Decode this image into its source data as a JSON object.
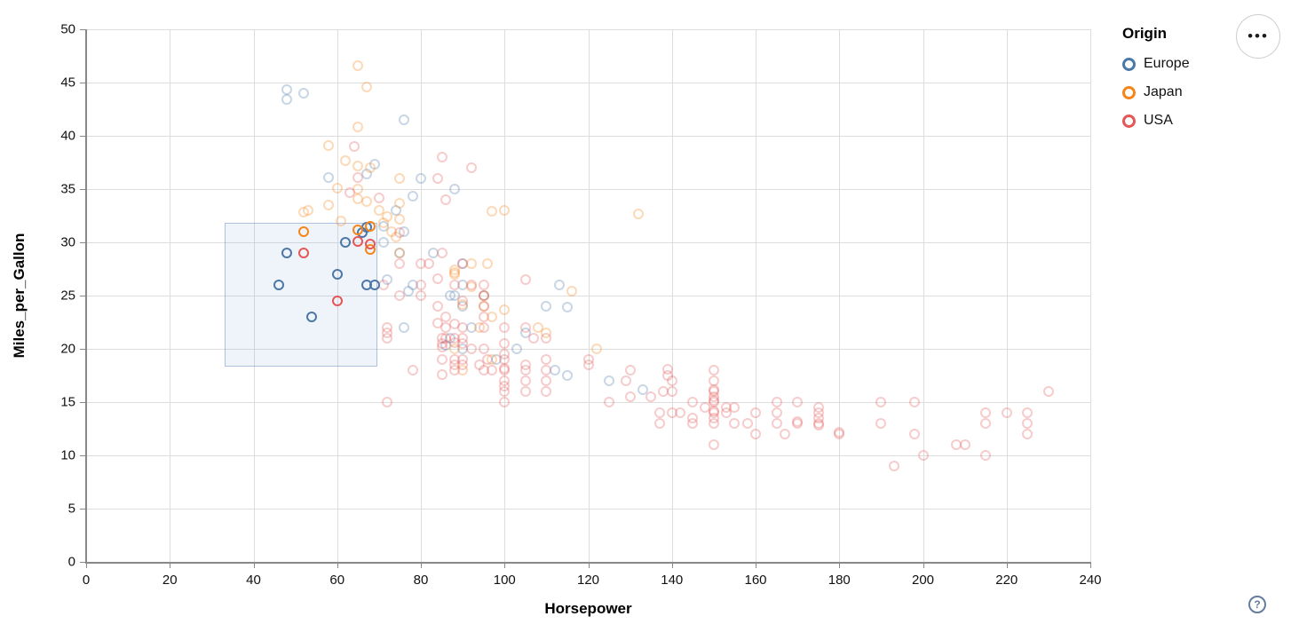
{
  "controls": {
    "menu_label": "•••",
    "help_label": "?"
  },
  "legend": {
    "title": "Origin",
    "entries": [
      {
        "label": "Europe",
        "color": "#4c78a8"
      },
      {
        "label": "Japan",
        "color": "#f58518"
      },
      {
        "label": "USA",
        "color": "#e45756"
      }
    ]
  },
  "colors": {
    "europe": "#4c78a8",
    "japan": "#f58518",
    "usa": "#e45756",
    "gridline": "#dddddd",
    "axis": "#888888",
    "brush_fill": "rgba(125,160,212,0.12)",
    "brush_border": "rgba(120,150,200,0.55)"
  },
  "chart_data": {
    "type": "scatter",
    "title": "",
    "xlabel": "Horsepower",
    "ylabel": "Miles_per_Gallon",
    "xlim": [
      0,
      240
    ],
    "ylim": [
      0,
      50
    ],
    "xticks": [
      0,
      20,
      40,
      60,
      80,
      100,
      120,
      140,
      160,
      180,
      200,
      220,
      240
    ],
    "yticks": [
      0,
      5,
      10,
      15,
      20,
      25,
      30,
      35,
      40,
      45,
      50
    ],
    "grid": true,
    "legend_position": "top-right",
    "legend_title": "Origin",
    "marker": "open-circle",
    "unselected_opacity": 0.3,
    "brush": {
      "x": [
        33,
        69.5
      ],
      "y": [
        18.3,
        31.8
      ]
    },
    "series": [
      {
        "name": "Europe",
        "color": "#4c78a8",
        "selected": [
          [
            46,
            26
          ],
          [
            48,
            29
          ],
          [
            54,
            23
          ],
          [
            60,
            27
          ],
          [
            62,
            30
          ],
          [
            66,
            30.9
          ],
          [
            67,
            31.4
          ],
          [
            67,
            26
          ],
          [
            69,
            26
          ]
        ],
        "points": [
          [
            48,
            43.4
          ],
          [
            48,
            44.3
          ],
          [
            52,
            44
          ],
          [
            76,
            41.5
          ],
          [
            88,
            35
          ],
          [
            67,
            36.4
          ],
          [
            58,
            36.1
          ],
          [
            69,
            37.3
          ],
          [
            78,
            34.3
          ],
          [
            74,
            33
          ],
          [
            71,
            31.5
          ],
          [
            71,
            30
          ],
          [
            76,
            31
          ],
          [
            83,
            29
          ],
          [
            75,
            29
          ],
          [
            90,
            28
          ],
          [
            78,
            26
          ],
          [
            90,
            26
          ],
          [
            87,
            25
          ],
          [
            90,
            24
          ],
          [
            110,
            24
          ],
          [
            95,
            25
          ],
          [
            113,
            26
          ],
          [
            115,
            23.9
          ],
          [
            105,
            21.5
          ],
          [
            77,
            25.4
          ],
          [
            125,
            17
          ],
          [
            133,
            16.2
          ],
          [
            112,
            18
          ],
          [
            98,
            19
          ],
          [
            90,
            20
          ],
          [
            87,
            21
          ],
          [
            76,
            22
          ],
          [
            86,
            20.3
          ],
          [
            92,
            22
          ],
          [
            103,
            20
          ],
          [
            115,
            17.5
          ],
          [
            80,
            36
          ],
          [
            88,
            25
          ],
          [
            72,
            26.5
          ]
        ]
      },
      {
        "name": "Japan",
        "color": "#f58518",
        "selected": [
          [
            52,
            31
          ],
          [
            65,
            31.2
          ],
          [
            68,
            31.5
          ],
          [
            68,
            29.3
          ]
        ],
        "points": [
          [
            95,
            24
          ],
          [
            88,
            27
          ],
          [
            88,
            27.4
          ],
          [
            65,
            35
          ],
          [
            74,
            30.5
          ],
          [
            95,
            25
          ],
          [
            92,
            28
          ],
          [
            97,
            23
          ],
          [
            88,
            20
          ],
          [
            94,
            22
          ],
          [
            90,
            18
          ],
          [
            122,
            20
          ],
          [
            73,
            31
          ],
          [
            88,
            27.2
          ],
          [
            53,
            33
          ],
          [
            75,
            29
          ],
          [
            61,
            32
          ],
          [
            97,
            19
          ],
          [
            110,
            21.5
          ],
          [
            67,
            33.8
          ],
          [
            65,
            34.1
          ],
          [
            52,
            32.8
          ],
          [
            60,
            35.1
          ],
          [
            65,
            40.8
          ],
          [
            58,
            39.1
          ],
          [
            62,
            37.7
          ],
          [
            65,
            37.2
          ],
          [
            75,
            33.7
          ],
          [
            96,
            28
          ],
          [
            97,
            32.9
          ],
          [
            100,
            33
          ],
          [
            116,
            25.4
          ],
          [
            132,
            32.7
          ],
          [
            100,
            23.7
          ],
          [
            72,
            32.4
          ],
          [
            75,
            36
          ],
          [
            75,
            32.2
          ],
          [
            70,
            33
          ],
          [
            67,
            44.6
          ],
          [
            65,
            46.6
          ],
          [
            58,
            33.5
          ],
          [
            71,
            31.8
          ],
          [
            68,
            37
          ],
          [
            90,
            24.2
          ],
          [
            108,
            22
          ],
          [
            92,
            25.8
          ]
        ]
      },
      {
        "name": "USA",
        "color": "#e45756",
        "selected": [
          [
            52,
            29
          ],
          [
            60,
            24.5
          ],
          [
            65,
            30.1
          ],
          [
            68,
            29.8
          ]
        ],
        "points": [
          [
            130,
            18
          ],
          [
            165,
            15
          ],
          [
            150,
            18
          ],
          [
            150,
            16
          ],
          [
            140,
            17
          ],
          [
            198,
            15
          ],
          [
            220,
            14
          ],
          [
            215,
            14
          ],
          [
            225,
            14
          ],
          [
            190,
            15
          ],
          [
            170,
            15
          ],
          [
            160,
            14
          ],
          [
            150,
            15
          ],
          [
            225,
            13
          ],
          [
            95,
            24
          ],
          [
            95,
            22
          ],
          [
            97,
            18
          ],
          [
            85,
            21
          ],
          [
            90,
            21
          ],
          [
            215,
            10
          ],
          [
            200,
            10
          ],
          [
            210,
            11
          ],
          [
            193,
            9
          ],
          [
            90,
            28
          ],
          [
            95,
            25
          ],
          [
            100,
            19
          ],
          [
            105,
            16
          ],
          [
            100,
            17
          ],
          [
            88,
            19
          ],
          [
            100,
            18
          ],
          [
            165,
            14
          ],
          [
            175,
            14
          ],
          [
            153,
            14
          ],
          [
            150,
            14
          ],
          [
            180,
            12
          ],
          [
            170,
            13
          ],
          [
            175,
            13
          ],
          [
            110,
            18
          ],
          [
            72,
            22
          ],
          [
            100,
            19.5
          ],
          [
            88,
            18
          ],
          [
            86,
            23
          ],
          [
            71,
            26
          ],
          [
            80,
            25
          ],
          [
            90,
            20.5
          ],
          [
            86,
            21
          ],
          [
            165,
            13
          ],
          [
            175,
            14.5
          ],
          [
            150,
            15.5
          ],
          [
            153,
            14.5
          ],
          [
            150,
            17
          ],
          [
            208,
            11
          ],
          [
            155,
            13
          ],
          [
            160,
            12
          ],
          [
            190,
            13
          ],
          [
            145,
            13
          ],
          [
            137,
            13
          ],
          [
            150,
            14.2
          ],
          [
            86,
            22
          ],
          [
            80,
            28
          ],
          [
            175,
            13.5
          ],
          [
            145,
            13.5
          ],
          [
            137,
            14
          ],
          [
            198,
            12
          ],
          [
            150,
            13
          ],
          [
            158,
            13
          ],
          [
            215,
            13
          ],
          [
            225,
            12
          ],
          [
            175,
            12.8
          ],
          [
            105,
            18
          ],
          [
            100,
            16
          ],
          [
            88,
            18.5
          ],
          [
            95,
            23
          ],
          [
            150,
            11
          ],
          [
            167,
            12
          ],
          [
            170,
            13.2
          ],
          [
            180,
            12.2
          ],
          [
            100,
            18.2
          ],
          [
            72,
            21
          ],
          [
            85,
            19
          ],
          [
            107,
            21
          ],
          [
            145,
            15
          ],
          [
            230,
            16
          ],
          [
            150,
            15.2
          ],
          [
            110,
            16
          ],
          [
            105,
            18.5
          ],
          [
            140,
            16
          ],
          [
            150,
            13.5
          ],
          [
            140,
            14
          ],
          [
            148,
            14.5
          ],
          [
            75,
            28
          ],
          [
            95,
            20
          ],
          [
            90,
            19
          ],
          [
            100,
            15
          ],
          [
            80,
            26
          ],
          [
            75,
            25
          ],
          [
            100,
            16.5
          ],
          [
            110,
            17
          ],
          [
            105,
            17
          ],
          [
            85,
            20.5
          ],
          [
            88,
            21
          ],
          [
            90,
            18.5
          ],
          [
            95,
            18
          ],
          [
            100,
            22
          ],
          [
            105,
            26.5
          ],
          [
            85,
            20.2
          ],
          [
            88,
            20.6
          ],
          [
            100,
            20.5
          ],
          [
            90,
            22
          ],
          [
            88,
            22.3
          ],
          [
            129,
            17
          ],
          [
            138,
            16
          ],
          [
            135,
            15.5
          ],
          [
            155,
            14.5
          ],
          [
            142,
            14
          ],
          [
            125,
            15
          ],
          [
            150,
            16.2
          ],
          [
            130,
            15.5
          ],
          [
            139,
            17.5
          ],
          [
            120,
            18.5
          ],
          [
            84,
            26.6
          ],
          [
            84,
            24
          ],
          [
            92,
            26
          ],
          [
            110,
            19
          ],
          [
            139,
            18.1
          ],
          [
            120,
            19
          ],
          [
            85,
            17.6
          ],
          [
            84,
            22.4
          ],
          [
            92,
            20
          ],
          [
            96,
            19
          ],
          [
            75,
            30.9
          ],
          [
            70,
            34.2
          ],
          [
            64,
            39
          ],
          [
            65,
            36.1
          ],
          [
            84,
            36
          ],
          [
            86,
            34
          ],
          [
            63,
            34.7
          ],
          [
            85,
            38
          ],
          [
            92,
            37
          ],
          [
            72,
            15
          ],
          [
            78,
            18
          ],
          [
            72,
            21.5
          ],
          [
            90,
            24.5
          ],
          [
            95,
            26
          ],
          [
            85,
            29
          ],
          [
            82,
            28
          ],
          [
            110,
            21
          ],
          [
            105,
            22
          ],
          [
            88,
            26
          ],
          [
            94,
            18.5
          ]
        ]
      }
    ]
  }
}
